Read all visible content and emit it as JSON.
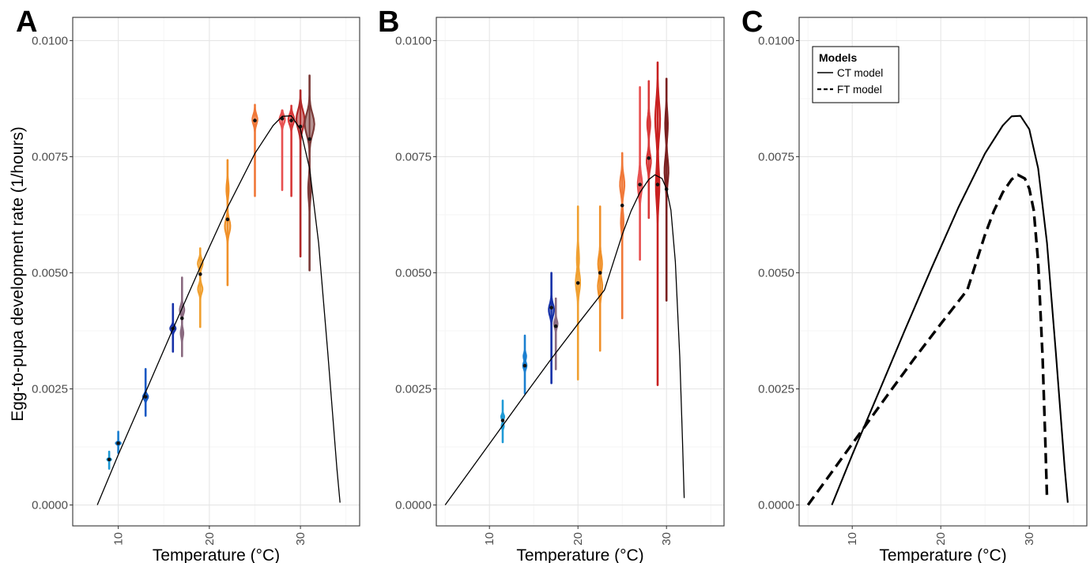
{
  "figure": {
    "panel_letters": [
      "A",
      "B",
      "C"
    ],
    "ylabel": "Egg-to-pupa   development rate (1/hours)",
    "xlabel": "Temperature (°C)"
  },
  "chart_data": [
    {
      "panel": "A",
      "type": "violin",
      "xlabel": "Temperature (°C)",
      "ylabel": "Egg-to-pupa   development rate (1/hours)",
      "xlim": [
        5,
        36.5
      ],
      "ylim": [
        -0.00045,
        0.0105
      ],
      "x_ticks": [
        10,
        20,
        30
      ],
      "y_ticks": [
        "0.0000",
        "0.0025",
        "0.0050",
        "0.0075",
        "0.0100"
      ],
      "grid": true,
      "violins": [
        {
          "x": 9,
          "median": 0.00098,
          "low": 0.00078,
          "high": 0.00115,
          "color": "#1e9ad6",
          "parts": [
            {
              "c": 0.00098,
              "w": 0.45
            }
          ]
        },
        {
          "x": 10,
          "median": 0.00133,
          "low": 0.00112,
          "high": 0.00158,
          "color": "#1a7fd0",
          "parts": [
            {
              "c": 0.00133,
              "w": 0.55
            }
          ]
        },
        {
          "x": 13,
          "median": 0.00233,
          "low": 0.00192,
          "high": 0.00293,
          "color": "#1559c4",
          "parts": [
            {
              "c": 0.00233,
              "w": 0.55
            }
          ]
        },
        {
          "x": 16,
          "median": 0.0038,
          "low": 0.0033,
          "high": 0.00433,
          "color": "#1631a8",
          "parts": [
            {
              "c": 0.0038,
              "w": 0.6
            }
          ]
        },
        {
          "x": 17,
          "median": 0.00402,
          "low": 0.0032,
          "high": 0.0049,
          "color": "#8a6a80",
          "parts": [
            {
              "c": 0.0042,
              "w": 0.5
            },
            {
              "c": 0.0037,
              "w": 0.3
            }
          ]
        },
        {
          "x": 19,
          "median": 0.00497,
          "low": 0.00383,
          "high": 0.00553,
          "color": "#f0a030",
          "parts": [
            {
              "c": 0.0052,
              "w": 0.55
            },
            {
              "c": 0.00465,
              "w": 0.5
            }
          ]
        },
        {
          "x": 22,
          "median": 0.00615,
          "low": 0.00473,
          "high": 0.00743,
          "color": "#f09028",
          "parts": [
            {
              "c": 0.006,
              "w": 0.6
            },
            {
              "c": 0.0068,
              "w": 0.25
            }
          ]
        },
        {
          "x": 25,
          "median": 0.00828,
          "low": 0.00665,
          "high": 0.00862,
          "color": "#f07838",
          "parts": [
            {
              "c": 0.0083,
              "w": 0.55
            }
          ]
        },
        {
          "x": 28,
          "median": 0.00832,
          "low": 0.00678,
          "high": 0.0085,
          "color": "#e85050",
          "parts": [
            {
              "c": 0.0083,
              "w": 0.6
            }
          ]
        },
        {
          "x": 29,
          "median": 0.00828,
          "low": 0.00665,
          "high": 0.0086,
          "color": "#d83838",
          "parts": [
            {
              "c": 0.0083,
              "w": 0.65
            }
          ]
        },
        {
          "x": 30,
          "median": 0.00815,
          "low": 0.00535,
          "high": 0.00893,
          "color": "#b02828",
          "parts": [
            {
              "c": 0.0083,
              "w": 0.9
            }
          ]
        },
        {
          "x": 31,
          "median": 0.00788,
          "low": 0.00505,
          "high": 0.00925,
          "color": "#7a3a38",
          "parts": [
            {
              "c": 0.0082,
              "w": 1.05
            },
            {
              "c": 0.0068,
              "w": 0.3
            }
          ]
        }
      ],
      "curves": [
        {
          "model": "CT",
          "dash": "solid",
          "x": [
            7.7,
            10,
            13,
            16,
            19,
            22,
            25,
            27,
            28,
            29,
            30,
            31,
            32,
            33,
            34,
            34.35
          ],
          "y": [
            0.0,
            0.00108,
            0.00243,
            0.00379,
            0.00512,
            0.00641,
            0.00757,
            0.00817,
            0.00837,
            0.00838,
            0.00809,
            0.00725,
            0.00564,
            0.00328,
            0.00079,
            5e-05
          ]
        }
      ]
    },
    {
      "panel": "B",
      "type": "violin",
      "xlabel": "Temperature (°C)",
      "ylabel": "",
      "xlim": [
        4,
        36.5
      ],
      "ylim": [
        -0.00045,
        0.0105
      ],
      "x_ticks": [
        10,
        20,
        30
      ],
      "y_ticks": [
        "0.0000",
        "0.0025",
        "0.0050",
        "0.0075",
        "0.0100"
      ],
      "grid": true,
      "violins": [
        {
          "x": 11.5,
          "median": 0.00182,
          "low": 0.00135,
          "high": 0.00225,
          "color": "#1e9ad6",
          "parts": [
            {
              "c": 0.0019,
              "w": 0.35
            },
            {
              "c": 0.0017,
              "w": 0.25
            }
          ]
        },
        {
          "x": 14,
          "median": 0.003,
          "low": 0.0024,
          "high": 0.00365,
          "color": "#1a7fd0",
          "parts": [
            {
              "c": 0.003,
              "w": 0.4
            },
            {
              "c": 0.0032,
              "w": 0.3
            }
          ]
        },
        {
          "x": 17,
          "median": 0.00425,
          "low": 0.00262,
          "high": 0.005,
          "color": "#1631a8",
          "parts": [
            {
              "c": 0.0042,
              "w": 0.6
            }
          ]
        },
        {
          "x": 17.5,
          "median": 0.00385,
          "low": 0.00292,
          "high": 0.00445,
          "color": "#8a6a80",
          "parts": [
            {
              "c": 0.0039,
              "w": 0.4
            }
          ]
        },
        {
          "x": 20,
          "median": 0.00478,
          "low": 0.0027,
          "high": 0.00643,
          "color": "#f0a030",
          "parts": [
            {
              "c": 0.0048,
              "w": 0.5
            },
            {
              "c": 0.0053,
              "w": 0.25
            }
          ]
        },
        {
          "x": 22.5,
          "median": 0.005,
          "low": 0.00332,
          "high": 0.00643,
          "color": "#f09028",
          "parts": [
            {
              "c": 0.0047,
              "w": 0.5
            },
            {
              "c": 0.0052,
              "w": 0.45
            }
          ]
        },
        {
          "x": 25,
          "median": 0.00645,
          "low": 0.00402,
          "high": 0.00758,
          "color": "#f07838",
          "parts": [
            {
              "c": 0.0069,
              "w": 0.5
            },
            {
              "c": 0.0061,
              "w": 0.3
            }
          ]
        },
        {
          "x": 27,
          "median": 0.0069,
          "low": 0.00528,
          "high": 0.009,
          "color": "#e85050",
          "parts": [
            {
              "c": 0.0069,
              "w": 0.5
            }
          ]
        },
        {
          "x": 28,
          "median": 0.00747,
          "low": 0.00618,
          "high": 0.00913,
          "color": "#d83838",
          "parts": [
            {
              "c": 0.0074,
              "w": 0.5
            },
            {
              "c": 0.0082,
              "w": 0.35
            }
          ]
        },
        {
          "x": 29,
          "median": 0.0069,
          "low": 0.00258,
          "high": 0.00953,
          "color": "#c82020",
          "parts": [
            {
              "c": 0.0083,
              "w": 0.55
            },
            {
              "c": 0.0069,
              "w": 0.4
            }
          ]
        },
        {
          "x": 30,
          "median": 0.0068,
          "low": 0.0044,
          "high": 0.00918,
          "color": "#7a2020",
          "parts": [
            {
              "c": 0.0072,
              "w": 0.45
            },
            {
              "c": 0.0082,
              "w": 0.3
            }
          ]
        }
      ],
      "curves": [
        {
          "model": "FT",
          "dash": "solid",
          "x": [
            5,
            8,
            11,
            14,
            17,
            20,
            23,
            25,
            26,
            27,
            28,
            28.7,
            29.5,
            30,
            30.5,
            31,
            31.5,
            31.8,
            32
          ],
          "y": [
            0.0,
            0.00079,
            0.00158,
            0.00237,
            0.00315,
            0.0039,
            0.00463,
            0.00582,
            0.00633,
            0.00673,
            0.00701,
            0.00711,
            0.00703,
            0.00681,
            0.00635,
            0.00524,
            0.00319,
            0.00141,
            0.00015
          ]
        }
      ]
    },
    {
      "panel": "C",
      "type": "line",
      "xlabel": "Temperature (°C)",
      "ylabel": "",
      "xlim": [
        4,
        36.5
      ],
      "ylim": [
        -0.00045,
        0.0105
      ],
      "x_ticks": [
        10,
        20,
        30
      ],
      "y_ticks": [
        "0.0000",
        "0.0025",
        "0.0050",
        "0.0075",
        "0.0100"
      ],
      "grid": true,
      "legend": {
        "title": "Models",
        "placement": "top-left",
        "entries": [
          {
            "label": "CT model",
            "dash": "solid"
          },
          {
            "label": "FT model",
            "dash": "dashed"
          }
        ]
      },
      "series": [
        {
          "name": "CT model",
          "dash": "solid",
          "x": [
            7.7,
            10,
            13,
            16,
            19,
            22,
            25,
            27,
            28,
            29,
            30,
            31,
            32,
            33,
            34,
            34.35
          ],
          "y": [
            0.0,
            0.00108,
            0.00243,
            0.00379,
            0.00512,
            0.00641,
            0.00757,
            0.00817,
            0.00837,
            0.00838,
            0.00809,
            0.00725,
            0.00564,
            0.00328,
            0.00079,
            5e-05
          ]
        },
        {
          "name": "FT model",
          "dash": "dashed",
          "x": [
            5,
            8,
            11,
            14,
            17,
            20,
            23,
            25,
            26,
            27,
            28,
            28.7,
            29.5,
            30,
            30.5,
            31,
            31.5,
            31.8,
            32
          ],
          "y": [
            0.0,
            0.00079,
            0.00158,
            0.00237,
            0.00315,
            0.0039,
            0.00463,
            0.00582,
            0.00633,
            0.00673,
            0.00701,
            0.00711,
            0.00703,
            0.00681,
            0.00635,
            0.00524,
            0.00319,
            0.00141,
            0.00015
          ]
        }
      ]
    }
  ]
}
